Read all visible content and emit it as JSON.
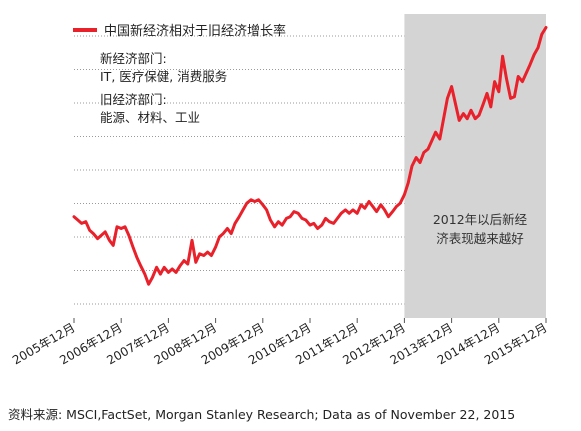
{
  "legend": {
    "label": "中国新经济相对于旧经济增长率",
    "color": "#e8212b"
  },
  "sectors": {
    "new_title": "新经济部门:",
    "new_items": "IT, 医疗保健, 消费服务",
    "old_title": "旧经济部门:",
    "old_items": "能源、材料、工业"
  },
  "shade_note": {
    "line1": "2012年以后新经",
    "line2": "济表现越来越好"
  },
  "source": "资料来源: MSCI,FactSet, Morgan Stanley Research; Data as of November 22, 2015",
  "chart_data": {
    "type": "line",
    "title": "",
    "xlabel": "",
    "ylabel": "",
    "x_ticks": [
      "2005年12月",
      "2006年12月",
      "2007年12月",
      "2008年12月",
      "2009年12月",
      "2010年12月",
      "2011年12月",
      "2012年12月",
      "2013年12月",
      "2014年12月",
      "2015年12月"
    ],
    "y_ticks_shown": false,
    "grid": "horizontal dotted",
    "shaded_region": {
      "from": 2012.92,
      "to": 2015.92,
      "color": "#d4d4d4"
    },
    "series": [
      {
        "name": "中国新经济相对于旧经济增长率",
        "color": "#e8212b",
        "points": [
          [
            2005.92,
            6.0
          ],
          [
            2006.0,
            5.8
          ],
          [
            2006.08,
            5.6
          ],
          [
            2006.17,
            5.7
          ],
          [
            2006.25,
            5.2
          ],
          [
            2006.33,
            5.0
          ],
          [
            2006.42,
            4.7
          ],
          [
            2006.5,
            4.9
          ],
          [
            2006.58,
            5.1
          ],
          [
            2006.67,
            4.6
          ],
          [
            2006.75,
            4.3
          ],
          [
            2006.83,
            5.4
          ],
          [
            2006.92,
            5.3
          ],
          [
            2007.0,
            5.4
          ],
          [
            2007.08,
            4.9
          ],
          [
            2007.17,
            4.2
          ],
          [
            2007.25,
            3.6
          ],
          [
            2007.33,
            3.1
          ],
          [
            2007.42,
            2.6
          ],
          [
            2007.5,
            2.0
          ],
          [
            2007.58,
            2.4
          ],
          [
            2007.67,
            3.0
          ],
          [
            2007.75,
            2.6
          ],
          [
            2007.83,
            3.0
          ],
          [
            2007.92,
            2.7
          ],
          [
            2008.0,
            2.9
          ],
          [
            2008.08,
            2.7
          ],
          [
            2008.17,
            3.1
          ],
          [
            2008.25,
            3.4
          ],
          [
            2008.33,
            3.2
          ],
          [
            2008.42,
            4.6
          ],
          [
            2008.5,
            3.3
          ],
          [
            2008.58,
            3.8
          ],
          [
            2008.67,
            3.7
          ],
          [
            2008.75,
            3.9
          ],
          [
            2008.83,
            3.7
          ],
          [
            2008.92,
            4.2
          ],
          [
            2009.0,
            4.8
          ],
          [
            2009.08,
            5.0
          ],
          [
            2009.17,
            5.3
          ],
          [
            2009.25,
            5.0
          ],
          [
            2009.33,
            5.6
          ],
          [
            2009.42,
            6.0
          ],
          [
            2009.5,
            6.4
          ],
          [
            2009.58,
            6.8
          ],
          [
            2009.67,
            7.0
          ],
          [
            2009.75,
            6.9
          ],
          [
            2009.83,
            7.0
          ],
          [
            2009.92,
            6.7
          ],
          [
            2010.0,
            6.4
          ],
          [
            2010.08,
            5.8
          ],
          [
            2010.17,
            5.4
          ],
          [
            2010.25,
            5.7
          ],
          [
            2010.33,
            5.5
          ],
          [
            2010.42,
            5.9
          ],
          [
            2010.5,
            6.0
          ],
          [
            2010.58,
            6.3
          ],
          [
            2010.67,
            6.2
          ],
          [
            2010.75,
            5.9
          ],
          [
            2010.83,
            5.8
          ],
          [
            2010.92,
            5.5
          ],
          [
            2011.0,
            5.6
          ],
          [
            2011.08,
            5.3
          ],
          [
            2011.17,
            5.5
          ],
          [
            2011.25,
            5.9
          ],
          [
            2011.33,
            5.7
          ],
          [
            2011.42,
            5.6
          ],
          [
            2011.5,
            5.9
          ],
          [
            2011.58,
            6.2
          ],
          [
            2011.67,
            6.4
          ],
          [
            2011.75,
            6.2
          ],
          [
            2011.83,
            6.4
          ],
          [
            2011.92,
            6.2
          ],
          [
            2012.0,
            6.7
          ],
          [
            2012.08,
            6.5
          ],
          [
            2012.17,
            6.9
          ],
          [
            2012.25,
            6.6
          ],
          [
            2012.33,
            6.3
          ],
          [
            2012.42,
            6.7
          ],
          [
            2012.5,
            6.4
          ],
          [
            2012.58,
            6.0
          ],
          [
            2012.67,
            6.3
          ],
          [
            2012.75,
            6.6
          ],
          [
            2012.83,
            6.8
          ],
          [
            2012.92,
            7.3
          ],
          [
            2013.0,
            8.0
          ],
          [
            2013.08,
            9.0
          ],
          [
            2013.17,
            9.5
          ],
          [
            2013.25,
            9.2
          ],
          [
            2013.33,
            9.8
          ],
          [
            2013.42,
            10.0
          ],
          [
            2013.5,
            10.5
          ],
          [
            2013.58,
            11.0
          ],
          [
            2013.67,
            10.6
          ],
          [
            2013.75,
            11.8
          ],
          [
            2013.83,
            13.0
          ],
          [
            2013.92,
            13.7
          ],
          [
            2014.0,
            12.7
          ],
          [
            2014.08,
            11.7
          ],
          [
            2014.17,
            12.1
          ],
          [
            2014.25,
            11.8
          ],
          [
            2014.33,
            12.3
          ],
          [
            2014.42,
            11.8
          ],
          [
            2014.5,
            12.0
          ],
          [
            2014.58,
            12.6
          ],
          [
            2014.67,
            13.3
          ],
          [
            2014.75,
            12.5
          ],
          [
            2014.83,
            14.0
          ],
          [
            2014.92,
            13.4
          ],
          [
            2015.0,
            15.5
          ],
          [
            2015.08,
            14.2
          ],
          [
            2015.17,
            13.0
          ],
          [
            2015.25,
            13.1
          ],
          [
            2015.33,
            14.3
          ],
          [
            2015.42,
            14.0
          ],
          [
            2015.5,
            14.5
          ],
          [
            2015.58,
            15.0
          ],
          [
            2015.67,
            15.6
          ],
          [
            2015.75,
            16.0
          ],
          [
            2015.83,
            16.8
          ],
          [
            2015.92,
            17.2
          ]
        ]
      }
    ]
  }
}
